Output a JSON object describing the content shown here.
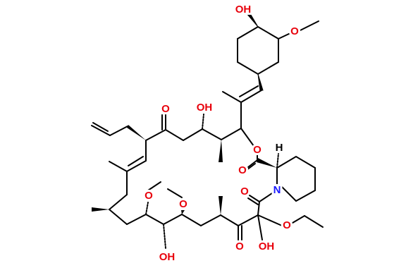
{
  "atom_labels": [
    "OH",
    "O",
    "O",
    "OH",
    "O",
    "H",
    "O",
    "N",
    "O",
    "O",
    "O",
    "OH",
    "O",
    "OH",
    "O"
  ]
}
